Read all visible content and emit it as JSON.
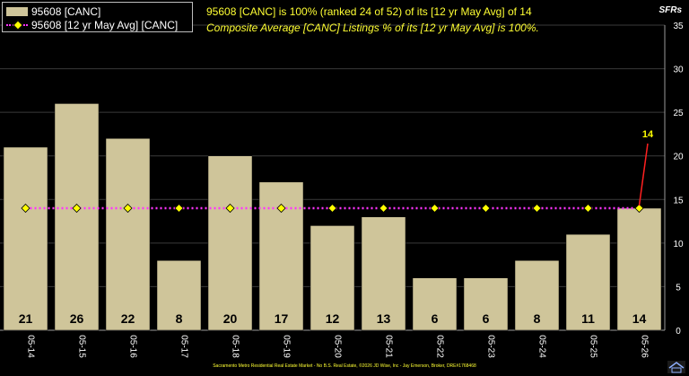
{
  "chart_data": {
    "type": "bar",
    "categories": [
      "05-14",
      "05-15",
      "05-16",
      "05-17",
      "05-18",
      "05-19",
      "05-20",
      "05-21",
      "05-22",
      "05-23",
      "05-24",
      "05-25",
      "05-26"
    ],
    "series": [
      {
        "name": "95608 [CANC]",
        "type": "bar",
        "values": [
          21,
          26,
          22,
          8,
          20,
          17,
          12,
          13,
          6,
          6,
          8,
          11,
          14
        ]
      },
      {
        "name": "95608 [12 yr May Avg] [CANC]",
        "type": "line",
        "values": [
          14,
          14,
          14,
          14,
          14,
          14,
          14,
          14,
          14,
          14,
          14,
          14,
          14
        ]
      }
    ],
    "data_labels": [
      "21",
      "26",
      "22",
      "8",
      "20",
      "17",
      "12",
      "13",
      "6",
      "6",
      "8",
      "11",
      "14"
    ],
    "callout": "14",
    "ylim": [
      0,
      35
    ],
    "y_ticks": [
      0,
      5,
      10,
      15,
      20,
      25,
      30,
      35
    ],
    "y_tick_labels": [
      "0",
      "5",
      "10",
      "15",
      "20",
      "25",
      "30",
      "35"
    ],
    "grid": true,
    "legend_position": "top-left",
    "colors": {
      "bar": "#cfc59a",
      "avg_line": "#ff33ff",
      "marker": "#ffff00",
      "callout": "#ff2020",
      "callout_text": "#ffff00",
      "background": "#000000",
      "grid": "#3a3a3a"
    }
  },
  "legend": {
    "bar_label": "95608 [CANC]",
    "line_label": "95608 [12 yr May Avg] [CANC]"
  },
  "headline": {
    "line1": "95608 [CANC] is 100% (ranked 24 of 52) of its [12 yr May Avg] of 14",
    "line2": "Composite Average [CANC] Listings % of its [12 yr May Avg] is 100%."
  },
  "unit_label": "SFRs",
  "footer": "Sacramento Metro Residential Real Estate Market - No B.S. Real Estate, ©2026 JD Wise, Inc - Jay Emerson, Broker, DRE#1768468"
}
